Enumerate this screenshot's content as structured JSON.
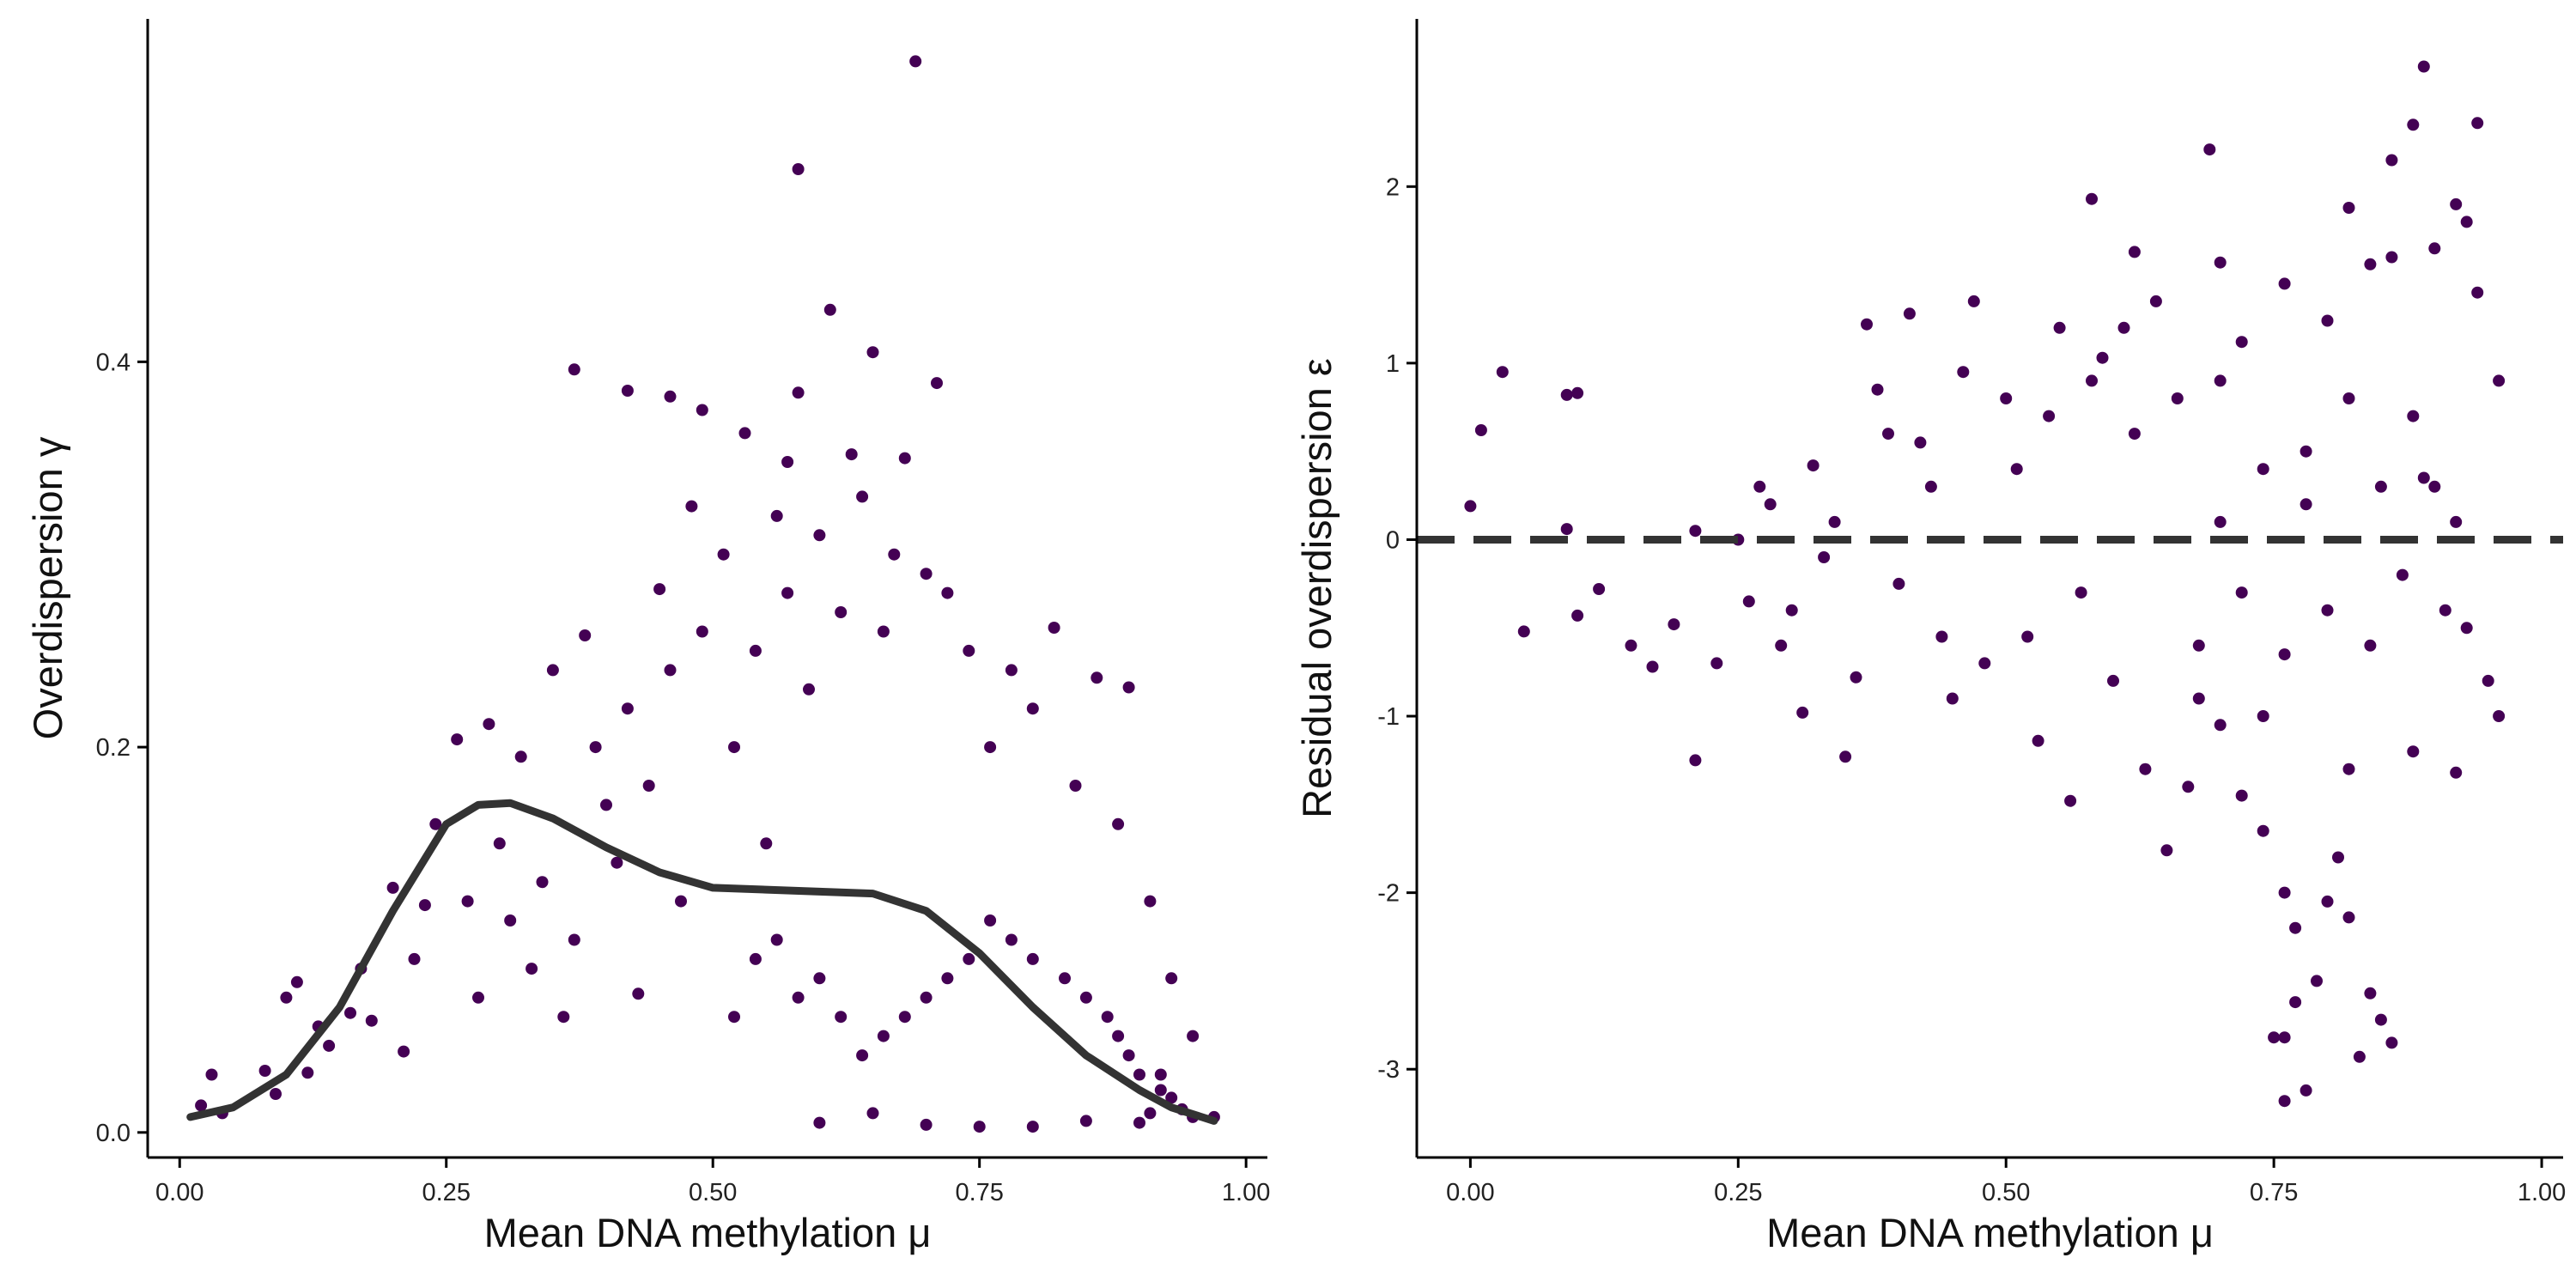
{
  "colors": {
    "viridis_low": "#440154",
    "viridis_mid_low": "#3b528b",
    "viridis_mid": "#21908d",
    "viridis_mid_high": "#5dc863",
    "viridis_high": "#fde725",
    "fit_line": "#333333",
    "axis": "#000000"
  },
  "chart_data": [
    {
      "type": "scatter",
      "xlabel": "Mean DNA methylation μ",
      "ylabel": "Overdispersion γ",
      "xlim": [
        -0.03,
        1.02
      ],
      "ylim": [
        -0.013,
        0.578
      ],
      "xticks": [
        0.0,
        0.25,
        0.5,
        0.75,
        1.0
      ],
      "xtick_labels": [
        "0.00",
        "0.25",
        "0.50",
        "0.75",
        "1.00"
      ],
      "yticks": [
        0.0,
        0.2,
        0.4
      ],
      "ytick_labels": [
        "0.0",
        "0.2",
        "0.4"
      ],
      "color_scale": "viridis density",
      "grid": false,
      "legend": "none",
      "points": [
        [
          0.69,
          0.556
        ],
        [
          0.58,
          0.5
        ],
        [
          0.61,
          0.427
        ],
        [
          0.37,
          0.396
        ],
        [
          0.65,
          0.405
        ],
        [
          0.71,
          0.389
        ],
        [
          0.42,
          0.385
        ],
        [
          0.46,
          0.382
        ],
        [
          0.49,
          0.375
        ],
        [
          0.58,
          0.384
        ],
        [
          0.53,
          0.363
        ],
        [
          0.68,
          0.35
        ],
        [
          0.63,
          0.352
        ],
        [
          0.57,
          0.348
        ],
        [
          0.02,
          0.014
        ],
        [
          0.04,
          0.01
        ],
        [
          0.03,
          0.03
        ],
        [
          0.09,
          0.02
        ],
        [
          0.1,
          0.07
        ],
        [
          0.11,
          0.078
        ],
        [
          0.12,
          0.031
        ],
        [
          0.14,
          0.045
        ],
        [
          0.16,
          0.062
        ],
        [
          0.18,
          0.058
        ],
        [
          0.2,
          0.127
        ],
        [
          0.21,
          0.042
        ],
        [
          0.23,
          0.118
        ],
        [
          0.26,
          0.204
        ],
        [
          0.27,
          0.12
        ],
        [
          0.29,
          0.212
        ],
        [
          0.3,
          0.15
        ],
        [
          0.32,
          0.195
        ],
        [
          0.33,
          0.085
        ],
        [
          0.35,
          0.24
        ],
        [
          0.37,
          0.1
        ],
        [
          0.38,
          0.258
        ],
        [
          0.4,
          0.17
        ],
        [
          0.42,
          0.22
        ],
        [
          0.43,
          0.072
        ],
        [
          0.45,
          0.282
        ],
        [
          0.48,
          0.325
        ],
        [
          0.08,
          0.032
        ],
        [
          0.13,
          0.055
        ],
        [
          0.17,
          0.085
        ],
        [
          0.22,
          0.09
        ],
        [
          0.24,
          0.16
        ],
        [
          0.28,
          0.07
        ],
        [
          0.31,
          0.11
        ],
        [
          0.34,
          0.13
        ],
        [
          0.36,
          0.06
        ],
        [
          0.39,
          0.2
        ],
        [
          0.41,
          0.14
        ],
        [
          0.44,
          0.18
        ],
        [
          0.46,
          0.24
        ],
        [
          0.47,
          0.12
        ],
        [
          0.49,
          0.26
        ],
        [
          0.51,
          0.3
        ],
        [
          0.52,
          0.2
        ],
        [
          0.54,
          0.25
        ],
        [
          0.55,
          0.15
        ],
        [
          0.56,
          0.32
        ],
        [
          0.57,
          0.28
        ],
        [
          0.59,
          0.23
        ],
        [
          0.6,
          0.31
        ],
        [
          0.62,
          0.27
        ],
        [
          0.64,
          0.33
        ],
        [
          0.66,
          0.26
        ],
        [
          0.67,
          0.3
        ],
        [
          0.7,
          0.29
        ],
        [
          0.72,
          0.28
        ],
        [
          0.74,
          0.25
        ],
        [
          0.76,
          0.2
        ],
        [
          0.78,
          0.24
        ],
        [
          0.8,
          0.22
        ],
        [
          0.82,
          0.262
        ],
        [
          0.84,
          0.18
        ],
        [
          0.86,
          0.236
        ],
        [
          0.88,
          0.16
        ],
        [
          0.89,
          0.231
        ],
        [
          0.91,
          0.12
        ],
        [
          0.93,
          0.08
        ],
        [
          0.95,
          0.05
        ],
        [
          0.97,
          0.008
        ],
        [
          0.6,
          0.005
        ],
        [
          0.65,
          0.01
        ],
        [
          0.7,
          0.004
        ],
        [
          0.75,
          0.003
        ],
        [
          0.8,
          0.003
        ],
        [
          0.85,
          0.006
        ],
        [
          0.9,
          0.005
        ],
        [
          0.93,
          0.018
        ],
        [
          0.94,
          0.012
        ],
        [
          0.92,
          0.022
        ],
        [
          0.91,
          0.01
        ],
        [
          0.95,
          0.008
        ],
        [
          0.9,
          0.03
        ],
        [
          0.89,
          0.04
        ],
        [
          0.92,
          0.03
        ],
        [
          0.88,
          0.05
        ],
        [
          0.87,
          0.06
        ],
        [
          0.85,
          0.07
        ],
        [
          0.83,
          0.08
        ],
        [
          0.8,
          0.09
        ],
        [
          0.78,
          0.1
        ],
        [
          0.76,
          0.11
        ],
        [
          0.74,
          0.09
        ],
        [
          0.72,
          0.08
        ],
        [
          0.7,
          0.07
        ],
        [
          0.68,
          0.06
        ],
        [
          0.66,
          0.05
        ],
        [
          0.64,
          0.04
        ],
        [
          0.62,
          0.06
        ],
        [
          0.6,
          0.08
        ],
        [
          0.58,
          0.07
        ],
        [
          0.56,
          0.1
        ],
        [
          0.54,
          0.09
        ],
        [
          0.52,
          0.06
        ]
      ],
      "smooth_fit": {
        "name": "",
        "x": [
          0.01,
          0.05,
          0.1,
          0.15,
          0.2,
          0.25,
          0.28,
          0.31,
          0.35,
          0.4,
          0.45,
          0.5,
          0.55,
          0.6,
          0.65,
          0.7,
          0.75,
          0.8,
          0.85,
          0.9,
          0.93,
          0.97
        ],
        "y": [
          0.008,
          0.013,
          0.03,
          0.065,
          0.115,
          0.16,
          0.17,
          0.171,
          0.163,
          0.148,
          0.135,
          0.127,
          0.126,
          0.125,
          0.124,
          0.115,
          0.093,
          0.065,
          0.04,
          0.022,
          0.013,
          0.006
        ]
      }
    },
    {
      "type": "scatter",
      "xlabel": "Mean DNA methylation μ",
      "ylabel": "Residual overdispersion ε",
      "xlim": [
        -0.05,
        1.02
      ],
      "ylim": [
        -3.5,
        2.95
      ],
      "xticks": [
        0.0,
        0.25,
        0.5,
        0.75,
        1.0
      ],
      "xtick_labels": [
        "0.00",
        "0.25",
        "0.50",
        "0.75",
        "1.00"
      ],
      "yticks": [
        -3,
        -2,
        -1,
        0,
        1,
        2
      ],
      "ytick_labels": [
        "-3",
        "-2",
        "-1",
        "0",
        "1",
        "2"
      ],
      "color_scale": "viridis density",
      "grid": false,
      "legend": "none",
      "reference_line": {
        "y": 0,
        "style": "dashed"
      },
      "points": [
        [
          0.89,
          2.68
        ],
        [
          0.94,
          2.36
        ],
        [
          0.88,
          2.35
        ],
        [
          0.69,
          2.21
        ],
        [
          0.86,
          2.15
        ],
        [
          0.58,
          1.93
        ],
        [
          0.62,
          1.63
        ],
        [
          0.7,
          1.57
        ],
        [
          0.82,
          1.88
        ],
        [
          0.03,
          0.95
        ],
        [
          0.09,
          0.82
        ],
        [
          0.1,
          0.83
        ],
        [
          0.01,
          0.62
        ],
        [
          0.0,
          0.19
        ],
        [
          0.05,
          -0.52
        ],
        [
          0.09,
          0.06
        ],
        [
          0.1,
          -0.43
        ],
        [
          0.15,
          -0.6
        ],
        [
          0.19,
          -0.48
        ],
        [
          0.21,
          0.05
        ],
        [
          0.21,
          -1.25
        ],
        [
          0.25,
          0.0
        ],
        [
          0.27,
          0.3
        ],
        [
          0.29,
          -0.6
        ],
        [
          0.31,
          -0.98
        ],
        [
          0.33,
          -0.1
        ],
        [
          0.35,
          -1.23
        ],
        [
          0.37,
          1.22
        ],
        [
          0.39,
          0.6
        ],
        [
          0.41,
          1.28
        ],
        [
          0.43,
          0.3
        ],
        [
          0.45,
          -0.9
        ],
        [
          0.47,
          1.35
        ],
        [
          0.5,
          0.8
        ],
        [
          0.53,
          -1.14
        ],
        [
          0.55,
          1.2
        ],
        [
          0.56,
          -1.48
        ],
        [
          0.59,
          1.03
        ],
        [
          0.61,
          1.2
        ],
        [
          0.63,
          -1.3
        ],
        [
          0.65,
          -1.76
        ],
        [
          0.67,
          -1.4
        ],
        [
          0.7,
          -1.05
        ],
        [
          0.72,
          -1.45
        ],
        [
          0.74,
          -1.65
        ],
        [
          0.76,
          -2.0
        ],
        [
          0.77,
          -2.2
        ],
        [
          0.79,
          -2.5
        ],
        [
          0.8,
          -2.05
        ],
        [
          0.81,
          -1.8
        ],
        [
          0.82,
          -2.14
        ],
        [
          0.77,
          -2.62
        ],
        [
          0.75,
          -2.82
        ],
        [
          0.76,
          -2.82
        ],
        [
          0.84,
          -2.57
        ],
        [
          0.85,
          -2.72
        ],
        [
          0.86,
          -2.85
        ],
        [
          0.83,
          -2.93
        ],
        [
          0.76,
          -3.18
        ],
        [
          0.78,
          -3.12
        ],
        [
          0.12,
          -0.28
        ],
        [
          0.17,
          -0.72
        ],
        [
          0.23,
          -0.7
        ],
        [
          0.26,
          -0.35
        ],
        [
          0.28,
          0.2
        ],
        [
          0.3,
          -0.4
        ],
        [
          0.32,
          0.42
        ],
        [
          0.34,
          0.1
        ],
        [
          0.36,
          -0.78
        ],
        [
          0.38,
          0.85
        ],
        [
          0.4,
          -0.25
        ],
        [
          0.42,
          0.55
        ],
        [
          0.44,
          -0.55
        ],
        [
          0.46,
          0.95
        ],
        [
          0.48,
          -0.7
        ],
        [
          0.51,
          0.4
        ],
        [
          0.52,
          -0.55
        ],
        [
          0.54,
          0.7
        ],
        [
          0.57,
          -0.3
        ],
        [
          0.58,
          0.9
        ],
        [
          0.6,
          -0.8
        ],
        [
          0.62,
          0.6
        ],
        [
          0.64,
          1.35
        ],
        [
          0.66,
          0.8
        ],
        [
          0.68,
          -0.6
        ],
        [
          0.7,
          0.9
        ],
        [
          0.72,
          1.12
        ],
        [
          0.74,
          -1.0
        ],
        [
          0.76,
          1.45
        ],
        [
          0.78,
          0.5
        ],
        [
          0.8,
          1.24
        ],
        [
          0.82,
          -1.3
        ],
        [
          0.84,
          1.56
        ],
        [
          0.86,
          1.6
        ],
        [
          0.88,
          -1.2
        ],
        [
          0.9,
          1.65
        ],
        [
          0.92,
          1.9
        ],
        [
          0.93,
          1.8
        ],
        [
          0.95,
          -0.8
        ],
        [
          0.96,
          0.9
        ],
        [
          0.96,
          -1.0
        ],
        [
          0.94,
          1.4
        ],
        [
          0.92,
          -1.32
        ],
        [
          0.9,
          0.3
        ],
        [
          0.91,
          -0.4
        ],
        [
          0.89,
          0.35
        ],
        [
          0.93,
          -0.5
        ],
        [
          0.92,
          0.1
        ],
        [
          0.88,
          0.7
        ],
        [
          0.87,
          -0.2
        ],
        [
          0.85,
          0.3
        ],
        [
          0.84,
          -0.6
        ],
        [
          0.82,
          0.8
        ],
        [
          0.8,
          -0.4
        ],
        [
          0.78,
          0.2
        ],
        [
          0.76,
          -0.65
        ],
        [
          0.74,
          0.4
        ],
        [
          0.72,
          -0.3
        ],
        [
          0.7,
          0.1
        ],
        [
          0.68,
          -0.9
        ]
      ]
    }
  ]
}
